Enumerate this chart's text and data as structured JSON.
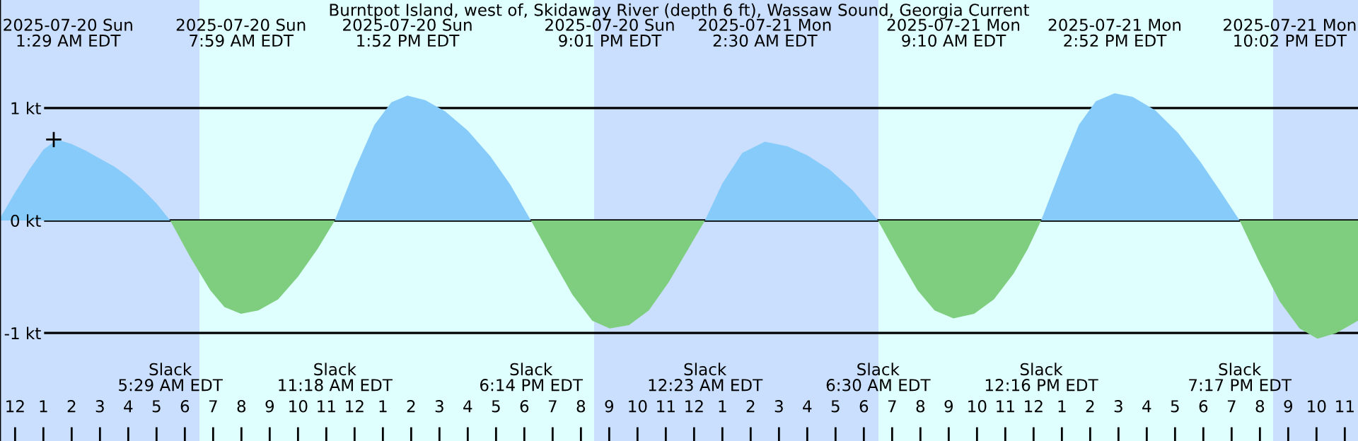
{
  "chart_data": {
    "type": "area",
    "title": "Burntpot Island, west of, Skidaway River (depth 6 ft), Wassaw Sound, Georgia Current",
    "x": [
      "2025-07-19T23:28",
      "2025-07-20T00:00",
      "2025-07-20T00:30",
      "2025-07-20T01:00",
      "2025-07-20T01:29",
      "2025-07-20T02:00",
      "2025-07-20T02:30",
      "2025-07-20T03:00",
      "2025-07-20T03:30",
      "2025-07-20T04:00",
      "2025-07-20T04:30",
      "2025-07-20T05:00",
      "2025-07-20T05:29",
      "2025-07-20T06:12",
      "2025-07-20T06:54",
      "2025-07-20T07:24",
      "2025-07-20T07:59",
      "2025-07-20T08:36",
      "2025-07-20T09:18",
      "2025-07-20T10:00",
      "2025-07-20T10:42",
      "2025-07-20T11:18",
      "2025-07-20T12:00",
      "2025-07-20T12:42",
      "2025-07-20T13:18",
      "2025-07-20T13:52",
      "2025-07-20T14:30",
      "2025-07-20T15:12",
      "2025-07-20T16:00",
      "2025-07-20T16:48",
      "2025-07-20T17:30",
      "2025-07-20T18:14",
      "2025-07-20T19:00",
      "2025-07-20T19:42",
      "2025-07-20T20:24",
      "2025-07-20T21:01",
      "2025-07-20T21:42",
      "2025-07-20T22:24",
      "2025-07-20T23:06",
      "2025-07-20T23:48",
      "2025-07-21T00:23",
      "2025-07-21T01:00",
      "2025-07-21T01:42",
      "2025-07-21T02:30",
      "2025-07-21T03:18",
      "2025-07-21T04:00",
      "2025-07-21T04:48",
      "2025-07-21T05:36",
      "2025-07-21T06:30",
      "2025-07-21T07:12",
      "2025-07-21T07:54",
      "2025-07-21T08:30",
      "2025-07-21T09:10",
      "2025-07-21T09:54",
      "2025-07-21T10:36",
      "2025-07-21T11:18",
      "2025-07-21T11:48",
      "2025-07-21T12:16",
      "2025-07-21T13:00",
      "2025-07-21T13:36",
      "2025-07-21T14:12",
      "2025-07-21T14:52",
      "2025-07-21T15:30",
      "2025-07-21T16:18",
      "2025-07-21T17:06",
      "2025-07-21T17:54",
      "2025-07-21T18:36",
      "2025-07-21T19:17",
      "2025-07-21T20:00",
      "2025-07-21T20:42",
      "2025-07-21T21:24",
      "2025-07-21T22:02",
      "2025-07-21T22:42",
      "2025-07-21T23:28"
    ],
    "series": [
      {
        "color": "#87cbfa",
        "values": [
          0.02,
          0.25,
          0.45,
          0.63,
          0.72,
          0.68,
          0.62,
          0.55,
          0.48,
          0.39,
          0.28,
          0.15,
          0,
          null,
          null,
          null,
          null,
          null,
          null,
          null,
          null,
          0,
          0.45,
          0.85,
          1.05,
          1.11,
          1.07,
          0.97,
          0.8,
          0.57,
          0.32,
          0,
          null,
          null,
          null,
          null,
          null,
          null,
          null,
          null,
          0,
          0.33,
          0.6,
          0.7,
          0.66,
          0.58,
          0.45,
          0.27,
          0,
          null,
          null,
          null,
          null,
          null,
          null,
          null,
          null,
          0,
          0.48,
          0.85,
          1.06,
          1.13,
          1.1,
          0.98,
          0.78,
          0.52,
          0.26,
          0,
          null,
          null,
          null,
          null,
          null,
          null
        ]
      },
      {
        "color": "#7fce7f",
        "values": [
          null,
          null,
          null,
          null,
          null,
          null,
          null,
          null,
          null,
          null,
          null,
          null,
          0,
          -0.33,
          -0.62,
          -0.77,
          -0.83,
          -0.8,
          -0.7,
          -0.5,
          -0.25,
          0,
          null,
          null,
          null,
          null,
          null,
          null,
          null,
          null,
          null,
          0,
          -0.35,
          -0.66,
          -0.89,
          -0.96,
          -0.93,
          -0.8,
          -0.55,
          -0.25,
          0,
          null,
          null,
          null,
          null,
          null,
          null,
          null,
          0,
          -0.32,
          -0.62,
          -0.8,
          -0.87,
          -0.83,
          -0.7,
          -0.47,
          -0.25,
          0,
          null,
          null,
          null,
          null,
          null,
          null,
          null,
          null,
          null,
          0,
          -0.38,
          -0.72,
          -0.96,
          -1.05,
          -1.0,
          -0.89
        ]
      },
      {
        "type": "scatter",
        "color": "#000000",
        "marker": "cross",
        "x": [
          "2025-07-20T01:22"
        ],
        "values": [
          0.72
        ]
      }
    ],
    "xlim": [
      "2025-07-19T23:28",
      "2025-07-21T23:28"
    ],
    "ylim": [
      -1.96,
      1.96
    ],
    "yticks": [
      {
        "value": 1,
        "label": "1 kt"
      },
      {
        "value": 0,
        "label": "0 kt"
      },
      {
        "value": -1,
        "label": "-1 kt"
      }
    ],
    "xticks": [
      {
        "value": "2025-07-20T00:00",
        "label": "12"
      },
      {
        "value": "2025-07-20T01:00",
        "label": "1"
      },
      {
        "value": "2025-07-20T02:00",
        "label": "2"
      },
      {
        "value": "2025-07-20T03:00",
        "label": "3"
      },
      {
        "value": "2025-07-20T04:00",
        "label": "4"
      },
      {
        "value": "2025-07-20T05:00",
        "label": "5"
      },
      {
        "value": "2025-07-20T06:00",
        "label": "6"
      },
      {
        "value": "2025-07-20T07:00",
        "label": "7"
      },
      {
        "value": "2025-07-20T08:00",
        "label": "8"
      },
      {
        "value": "2025-07-20T09:00",
        "label": "9"
      },
      {
        "value": "2025-07-20T10:00",
        "label": "10"
      },
      {
        "value": "2025-07-20T11:00",
        "label": "11"
      },
      {
        "value": "2025-07-20T12:00",
        "label": "12"
      },
      {
        "value": "2025-07-20T13:00",
        "label": "1"
      },
      {
        "value": "2025-07-20T14:00",
        "label": "2"
      },
      {
        "value": "2025-07-20T15:00",
        "label": "3"
      },
      {
        "value": "2025-07-20T16:00",
        "label": "4"
      },
      {
        "value": "2025-07-20T17:00",
        "label": "5"
      },
      {
        "value": "2025-07-20T18:00",
        "label": "6"
      },
      {
        "value": "2025-07-20T19:00",
        "label": "7"
      },
      {
        "value": "2025-07-20T20:00",
        "label": "8"
      },
      {
        "value": "2025-07-20T21:00",
        "label": "9"
      },
      {
        "value": "2025-07-20T22:00",
        "label": "10"
      },
      {
        "value": "2025-07-20T23:00",
        "label": "11"
      },
      {
        "value": "2025-07-21T00:00",
        "label": "12"
      },
      {
        "value": "2025-07-21T01:00",
        "label": "1"
      },
      {
        "value": "2025-07-21T02:00",
        "label": "2"
      },
      {
        "value": "2025-07-21T03:00",
        "label": "3"
      },
      {
        "value": "2025-07-21T04:00",
        "label": "4"
      },
      {
        "value": "2025-07-21T05:00",
        "label": "5"
      },
      {
        "value": "2025-07-21T06:00",
        "label": "6"
      },
      {
        "value": "2025-07-21T07:00",
        "label": "7"
      },
      {
        "value": "2025-07-21T08:00",
        "label": "8"
      },
      {
        "value": "2025-07-21T09:00",
        "label": "9"
      },
      {
        "value": "2025-07-21T10:00",
        "label": "10"
      },
      {
        "value": "2025-07-21T11:00",
        "label": "11"
      },
      {
        "value": "2025-07-21T12:00",
        "label": "12"
      },
      {
        "value": "2025-07-21T13:00",
        "label": "1"
      },
      {
        "value": "2025-07-21T14:00",
        "label": "2"
      },
      {
        "value": "2025-07-21T15:00",
        "label": "3"
      },
      {
        "value": "2025-07-21T16:00",
        "label": "4"
      },
      {
        "value": "2025-07-21T17:00",
        "label": "5"
      },
      {
        "value": "2025-07-21T18:00",
        "label": "6"
      },
      {
        "value": "2025-07-21T19:00",
        "label": "7"
      },
      {
        "value": "2025-07-21T20:00",
        "label": "8"
      },
      {
        "value": "2025-07-21T21:00",
        "label": "9"
      },
      {
        "value": "2025-07-21T22:00",
        "label": "10"
      },
      {
        "value": "2025-07-21T23:00",
        "label": "11"
      }
    ],
    "grid": "y",
    "bands": [
      {
        "axis": "x",
        "from": "2025-07-19T23:28",
        "to": "2025-07-20T06:31",
        "color": "#c9dffd"
      },
      {
        "axis": "x",
        "from": "2025-07-20T06:31",
        "to": "2025-07-20T20:28",
        "color": "#dfffff"
      },
      {
        "axis": "x",
        "from": "2025-07-20T20:28",
        "to": "2025-07-21T06:31",
        "color": "#c9dffd"
      },
      {
        "axis": "x",
        "from": "2025-07-21T06:31",
        "to": "2025-07-21T20:28",
        "color": "#dfffff"
      },
      {
        "axis": "x",
        "from": "2025-07-21T20:28",
        "to": "2025-07-21T23:28",
        "color": "#c9dffd"
      }
    ],
    "annotations": [
      "2025-07-20 Sun\n1:29 AM EDT",
      "2025-07-20 Sun\n7:59 AM EDT",
      "2025-07-20 Sun\n1:52 PM EDT",
      "2025-07-20 Sun\n9:01 PM EDT",
      "2025-07-21 Mon\n2:30 AM EDT",
      "2025-07-21 Mon\n9:10 AM EDT",
      "2025-07-21 Mon\n2:52 PM EDT",
      "2025-07-21 Mon\n10:02 PM EDT",
      "Slack\n5:29 AM EDT",
      "Slack\n11:18 AM EDT",
      "Slack\n6:14 PM EDT",
      "Slack\n12:23 AM EDT",
      "Slack\n6:30 AM EDT",
      "Slack\n12:16 PM EDT",
      "Slack\n7:17 PM EDT"
    ]
  }
}
